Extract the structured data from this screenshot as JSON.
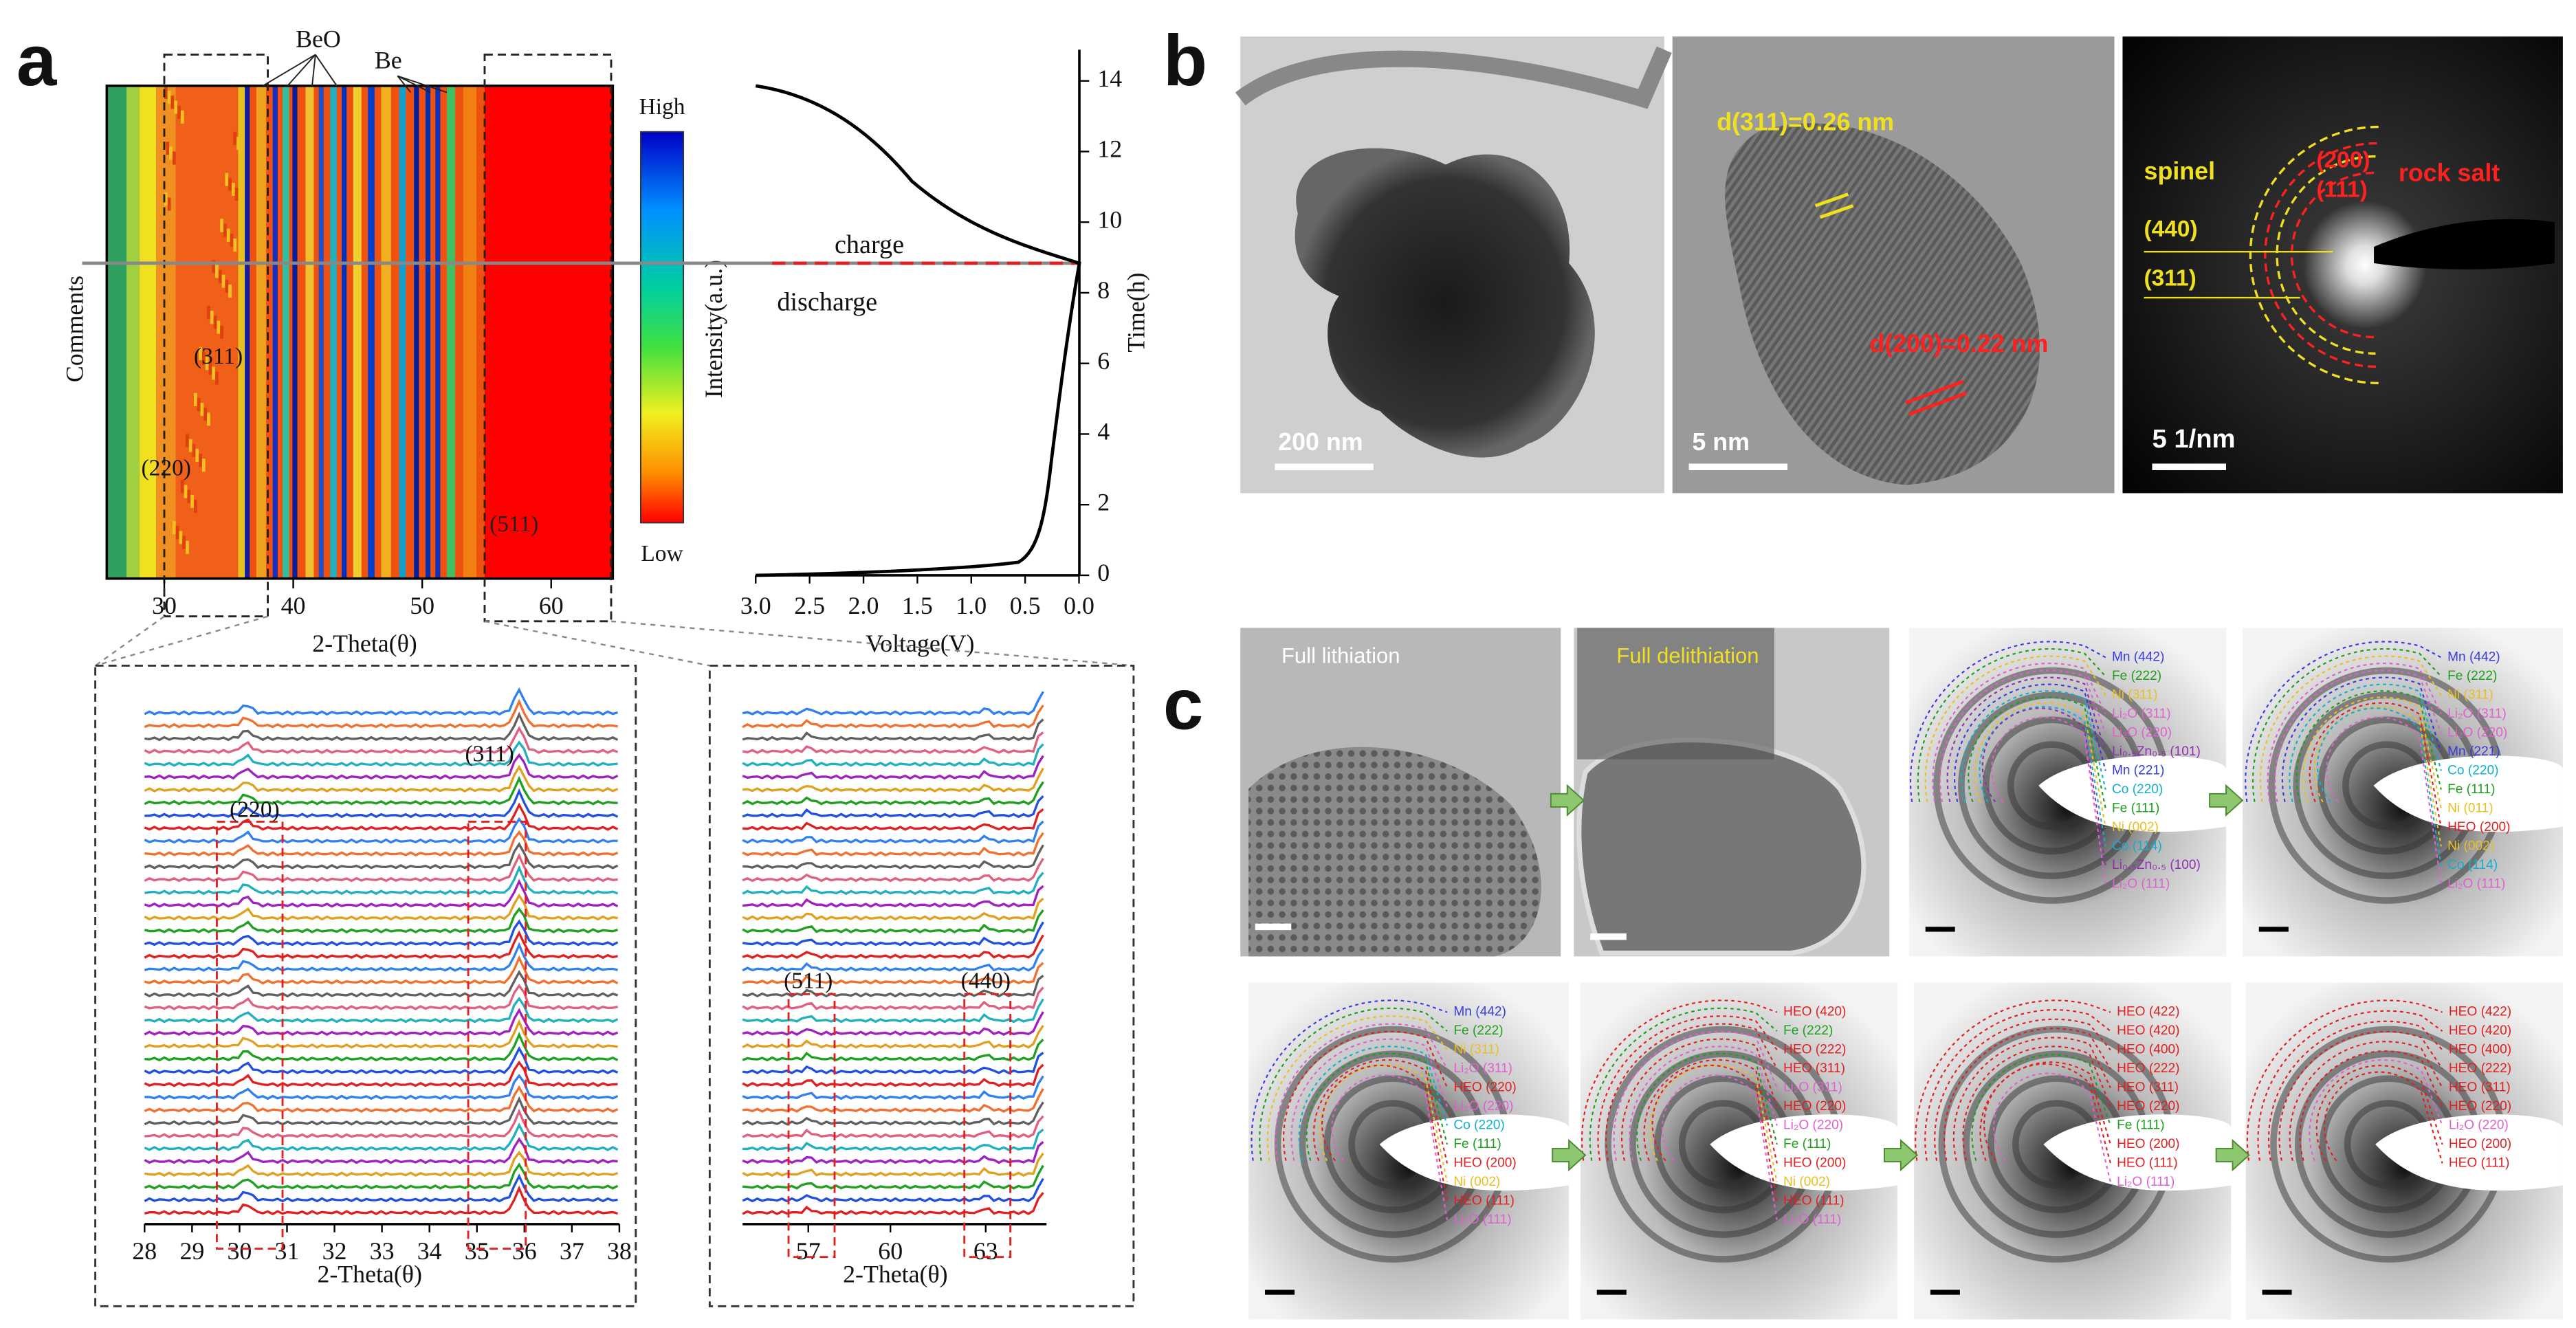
{
  "panel_a": {
    "label": "a",
    "heatmap": {
      "annotations": {
        "beo": "BeO",
        "be": "Be",
        "p311": "(311)",
        "p220": "(220)",
        "p511": "(511)"
      },
      "x_label": "2-Theta(θ)",
      "y_label": "Comments",
      "xticks": [
        "30",
        "40",
        "50",
        "60"
      ],
      "colorbar": {
        "high": "High",
        "low": "Low",
        "label": "Intensity(a.u.)"
      }
    },
    "voltage": {
      "x_label": "Voltage(V)",
      "y_label": "Time(h)",
      "xticks": [
        "3.0",
        "2.5",
        "2.0",
        "1.5",
        "1.0",
        "0.5",
        "0.0"
      ],
      "yticks": [
        "0",
        "2",
        "4",
        "6",
        "8",
        "10",
        "12",
        "14"
      ],
      "charge": "charge",
      "discharge": "discharge"
    },
    "xrd_left": {
      "x_label": "2-Theta(θ)",
      "xticks": [
        "28",
        "29",
        "30",
        "31",
        "32",
        "33",
        "34",
        "35",
        "36",
        "37",
        "38"
      ],
      "p220": "(220)",
      "p311": "(311)"
    },
    "xrd_right": {
      "x_label": "2-Theta(θ)",
      "xticks": [
        "57",
        "60",
        "63"
      ],
      "p511": "(511)",
      "p440": "(440)"
    }
  },
  "panel_b": {
    "label": "b",
    "scale_1": "200 nm",
    "scale_2": "5 nm",
    "scale_3": "5 1/nm",
    "d311": "d(311)=0.26 nm",
    "d200": "d(200)=0.22 nm",
    "spinel": "spinel",
    "s440": "(440)",
    "s311": "(311)",
    "r200": "(200)",
    "r111": "(111)",
    "rock_salt": "rock salt"
  },
  "panel_c": {
    "label": "c",
    "full_lithiation": "Full lithiation",
    "full_delithiation": "Full delithiation",
    "top_saed_1": [
      {
        "text": "Mn (442)",
        "color": "#3a3ae0"
      },
      {
        "text": "Fe (222)",
        "color": "#1aa01a"
      },
      {
        "text": "Ni (311)",
        "color": "#e8c020"
      },
      {
        "text": "Li₂O (311)",
        "color": "#e060d0"
      },
      {
        "text": "Li₂O (220)",
        "color": "#e060d0"
      },
      {
        "text": "Li₀.₅Zn₀.₅ (101)",
        "color": "#9030b0"
      },
      {
        "text": "Mn (221)",
        "color": "#3a3ae0"
      },
      {
        "text": "Co (220)",
        "color": "#10b0d0"
      },
      {
        "text": "Fe (111)",
        "color": "#1aa01a"
      },
      {
        "text": "Ni (002)",
        "color": "#e8c020"
      },
      {
        "text": "Co (114)",
        "color": "#10b0d0"
      },
      {
        "text": "Li₀.₅Zn₀.₅ (100)",
        "color": "#9030b0"
      },
      {
        "text": "Li₂O (111)",
        "color": "#e060d0"
      }
    ],
    "top_saed_2": [
      {
        "text": "Mn (442)",
        "color": "#3a3ae0"
      },
      {
        "text": "Fe (222)",
        "color": "#1aa01a"
      },
      {
        "text": "Ni (311)",
        "color": "#e8c020"
      },
      {
        "text": "Li₂O (311)",
        "color": "#e060d0"
      },
      {
        "text": "Li₂O (220)",
        "color": "#e060d0"
      },
      {
        "text": "Mn (221)",
        "color": "#3a3ae0"
      },
      {
        "text": "Co (220)",
        "color": "#10b0d0"
      },
      {
        "text": "Fe (111)",
        "color": "#1aa01a"
      },
      {
        "text": "Ni (011)",
        "color": "#e8c020"
      },
      {
        "text": "HEO (200)",
        "color": "#e02020"
      },
      {
        "text": "Ni (002)",
        "color": "#e8c020"
      },
      {
        "text": "Co (114)",
        "color": "#10b0d0"
      },
      {
        "text": "Li₂O (111)",
        "color": "#e060d0"
      }
    ],
    "bottom_saed_1": [
      {
        "text": "Mn (442)",
        "color": "#3a3ae0"
      },
      {
        "text": "Fe (222)",
        "color": "#1aa01a"
      },
      {
        "text": "Ni (311)",
        "color": "#e8c020"
      },
      {
        "text": "Li₂O (311)",
        "color": "#e060d0"
      },
      {
        "text": "HEO (220)",
        "color": "#e02020"
      },
      {
        "text": "Li₂O (220)",
        "color": "#e060d0"
      },
      {
        "text": "Co (220)",
        "color": "#10b0d0"
      },
      {
        "text": "Fe (111)",
        "color": "#1aa01a"
      },
      {
        "text": "HEO (200)",
        "color": "#e02020"
      },
      {
        "text": "Ni (002)",
        "color": "#e8c020"
      },
      {
        "text": "HEO (111)",
        "color": "#e02020"
      },
      {
        "text": "Li₂O (111)",
        "color": "#e060d0"
      }
    ],
    "bottom_saed_2": [
      {
        "text": "HEO (420)",
        "color": "#e02020"
      },
      {
        "text": "Fe (222)",
        "color": "#1aa01a"
      },
      {
        "text": "HEO (222)",
        "color": "#e02020"
      },
      {
        "text": "HEO (311)",
        "color": "#e02020"
      },
      {
        "text": "Li₂O (311)",
        "color": "#e060d0"
      },
      {
        "text": "HEO (220)",
        "color": "#e02020"
      },
      {
        "text": "Li₂O (220)",
        "color": "#e060d0"
      },
      {
        "text": "Fe (111)",
        "color": "#1aa01a"
      },
      {
        "text": "HEO (200)",
        "color": "#e02020"
      },
      {
        "text": "Ni (002)",
        "color": "#e8c020"
      },
      {
        "text": "HEO (111)",
        "color": "#e02020"
      },
      {
        "text": "Li₂O (111)",
        "color": "#e060d0"
      }
    ],
    "bottom_saed_3": [
      {
        "text": "HEO (422)",
        "color": "#e02020"
      },
      {
        "text": "HEO (420)",
        "color": "#e02020"
      },
      {
        "text": "HEO (400)",
        "color": "#e02020"
      },
      {
        "text": "HEO (222)",
        "color": "#e02020"
      },
      {
        "text": "HEO (311)",
        "color": "#e02020"
      },
      {
        "text": "HEO (220)",
        "color": "#e02020"
      },
      {
        "text": "Fe (111)",
        "color": "#1aa01a"
      },
      {
        "text": "HEO (200)",
        "color": "#e02020"
      },
      {
        "text": "HEO (111)",
        "color": "#e02020"
      },
      {
        "text": "Li₂O (111)",
        "color": "#e060d0"
      }
    ],
    "bottom_saed_4": [
      {
        "text": "HEO (422)",
        "color": "#e02020"
      },
      {
        "text": "HEO (420)",
        "color": "#e02020"
      },
      {
        "text": "HEO (400)",
        "color": "#e02020"
      },
      {
        "text": "HEO (222)",
        "color": "#e02020"
      },
      {
        "text": "HEO (311)",
        "color": "#e02020"
      },
      {
        "text": "HEO (220)",
        "color": "#e02020"
      },
      {
        "text": "Li₂O (220)",
        "color": "#e060d0"
      },
      {
        "text": "HEO (200)",
        "color": "#e02020"
      },
      {
        "text": "HEO (111)",
        "color": "#e02020"
      }
    ]
  }
}
